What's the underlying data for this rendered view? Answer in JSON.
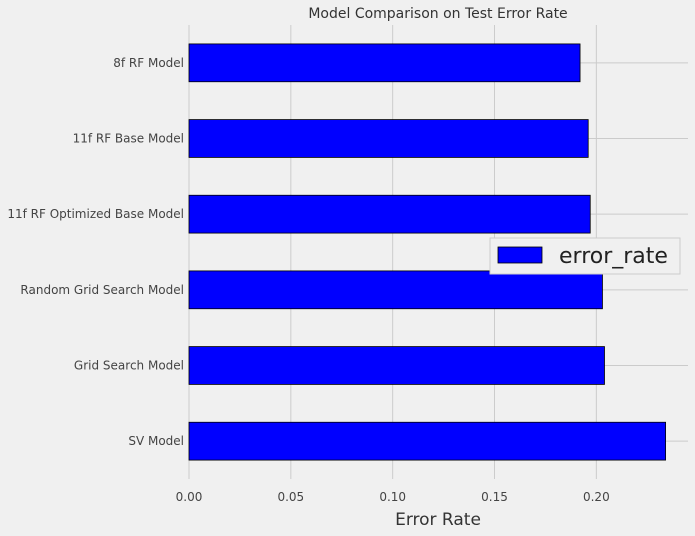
{
  "chart_data": {
    "type": "bar",
    "orientation": "horizontal",
    "title": "Model Comparison on Test Error Rate",
    "xlabel": "Error Rate",
    "ylabel": "",
    "categories": [
      "8f RF Model",
      "11f RF Base Model",
      "11f RF Optimized Base Model",
      "Random Grid Search Model",
      "Grid Search Model",
      "SV Model"
    ],
    "series": [
      {
        "name": "error_rate",
        "values": [
          0.192,
          0.196,
          0.197,
          0.203,
          0.204,
          0.234
        ]
      }
    ],
    "xlim": [
      0,
      0.245
    ],
    "xticks": [
      "0.00",
      "0.05",
      "0.10",
      "0.15",
      "0.20"
    ],
    "grid": true,
    "legend_position": "center-right",
    "colors": {
      "bar": "#0000ff",
      "bar_edge": "#000000",
      "background": "#f0f0f0",
      "grid": "#cbcbcb"
    }
  }
}
